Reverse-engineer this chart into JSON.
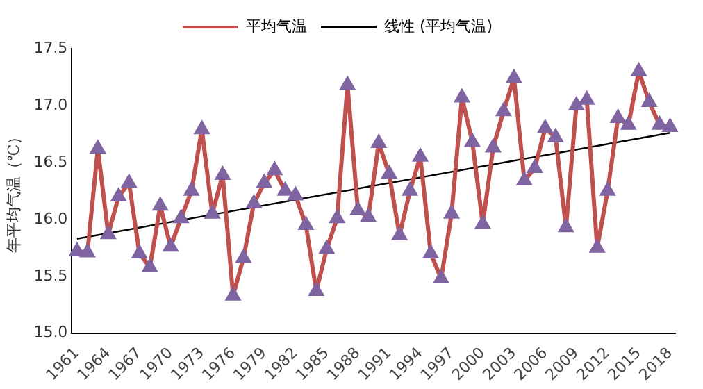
{
  "chart_data": {
    "type": "line",
    "ylabel": "年平均气温（℃）",
    "categories": [
      "1961",
      null,
      null,
      "1964",
      null,
      null,
      "1967",
      null,
      null,
      "1970",
      null,
      null,
      "1973",
      null,
      null,
      "1976",
      null,
      null,
      "1979",
      null,
      null,
      "1982",
      null,
      null,
      "1985",
      null,
      null,
      "1988",
      null,
      null,
      "1991",
      null,
      null,
      "1994",
      null,
      null,
      "1997",
      null,
      null,
      "2000",
      null,
      null,
      "2003",
      null,
      null,
      "2006",
      null,
      null,
      "2009",
      null,
      null,
      "2012",
      null,
      null,
      "2015",
      null,
      null,
      "2018"
    ],
    "series": [
      {
        "name": "平均气温",
        "color": "#c0504d",
        "marker": "triangle",
        "values": [
          15.72,
          15.71,
          16.62,
          15.87,
          16.2,
          16.32,
          15.7,
          15.58,
          16.12,
          15.76,
          16.01,
          16.25,
          16.79,
          16.05,
          16.39,
          15.33,
          15.66,
          16.14,
          16.32,
          16.43,
          16.25,
          16.21,
          15.95,
          15.37,
          15.74,
          16.01,
          17.18,
          16.08,
          16.02,
          16.67,
          16.4,
          15.86,
          16.25,
          16.55,
          15.7,
          15.48,
          16.05,
          17.07,
          16.68,
          15.96,
          16.63,
          16.95,
          17.24,
          16.34,
          16.45,
          16.8,
          16.72,
          15.93,
          17.0,
          17.05,
          15.75,
          16.25,
          16.89,
          16.83,
          17.3,
          17.03,
          16.83,
          16.81
        ]
      },
      {
        "name": "线性 (平均气温)",
        "color": "#000000",
        "marker": "none",
        "values": [
          15.83,
          null,
          null,
          null,
          null,
          null,
          null,
          null,
          null,
          null,
          null,
          null,
          null,
          null,
          null,
          null,
          null,
          null,
          null,
          null,
          null,
          null,
          null,
          null,
          null,
          null,
          null,
          null,
          null,
          null,
          null,
          null,
          null,
          null,
          null,
          null,
          null,
          null,
          null,
          null,
          null,
          null,
          null,
          null,
          null,
          null,
          null,
          null,
          null,
          null,
          null,
          null,
          null,
          null,
          null,
          null,
          null,
          16.76
        ]
      }
    ],
    "ylim": [
      15,
      17.5
    ],
    "yticks": [
      {
        "value": 15,
        "label": "15.0"
      },
      {
        "value": 15.5,
        "label": "15.5"
      },
      {
        "value": 16,
        "label": "16.0"
      },
      {
        "value": 16.5,
        "label": "16.5"
      },
      {
        "value": 17,
        "label": "17.0"
      },
      {
        "value": 17.5,
        "label": "17.5"
      }
    ],
    "grid": false,
    "legend": "top"
  }
}
